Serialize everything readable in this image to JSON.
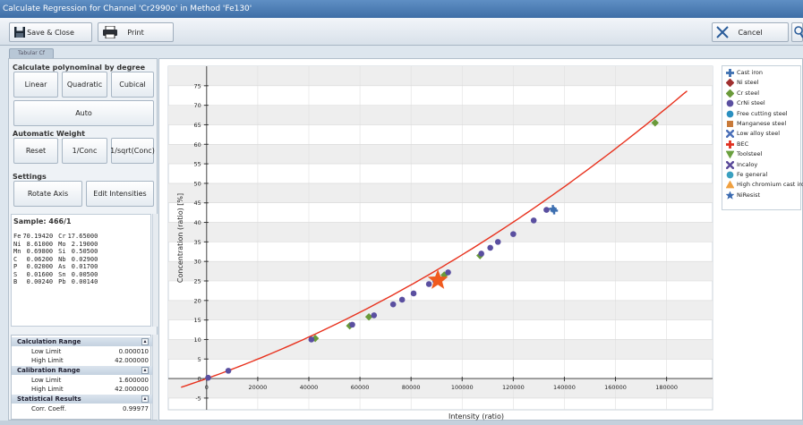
{
  "window": {
    "title": "Calculate Regression for Channel 'Cr2990o' in Method 'Fe130'"
  },
  "toolbar": {
    "save_close": "Save & Close",
    "print": "Print",
    "cancel": "Cancel"
  },
  "tab": {
    "label": "Tabular Cf"
  },
  "left": {
    "polynomial_header": "Calculate polynominal by degree",
    "linear": "Linear",
    "quadratic": "Quadratic",
    "cubical": "Cubical",
    "auto": "Auto",
    "weight_header": "Automatic Weight",
    "reset": "Reset",
    "one_conc": "1/Conc",
    "one_sqrt_conc": "1/sqrt(Conc)",
    "settings_header": "Settings",
    "rotate_axis": "Rotate Axis",
    "edit_intensities": "Edit Intensities"
  },
  "sample": {
    "title": "Sample: 466/1",
    "rows": [
      {
        "e1": "Fe",
        "v1": "70.19420",
        "e2": "Cr",
        "v2": "17.65000"
      },
      {
        "e1": "Ni",
        "v1": "8.61000",
        "e2": "Mo",
        "v2": "2.19000"
      },
      {
        "e1": "Mn",
        "v1": "0.69800",
        "e2": "Si",
        "v2": "0.50500"
      },
      {
        "e1": "C",
        "v1": "0.06200",
        "e2": "Nb",
        "v2": "0.02900"
      },
      {
        "e1": "P",
        "v1": "0.02000",
        "e2": "As",
        "v2": "0.01700"
      },
      {
        "e1": "S",
        "v1": "0.01600",
        "e2": "Sn",
        "v2": "0.00500"
      },
      {
        "e1": "B",
        "v1": "0.00240",
        "e2": "Pb",
        "v2": "0.00140"
      }
    ]
  },
  "props": {
    "calc_range": "Calculation Range",
    "low_limit": "Low Limit",
    "calc_low": "0.000010",
    "high_limit": "High Limit",
    "calc_high": "42.000000",
    "calib_range": "Calibration Range",
    "calib_low": "1.600000",
    "calib_high": "42.000000",
    "stat_results": "Statistical Results",
    "corr_coeff": "Corr. Coeff.",
    "corr_value": "0.99977"
  },
  "chart_data": {
    "type": "scatter",
    "xlabel": "Intensity (ratio)",
    "ylabel": "Concentration (ratio) [%]",
    "xlim": [
      -15000,
      198000
    ],
    "ylim": [
      -8,
      80
    ],
    "xticks": [
      0,
      20000,
      40000,
      60000,
      80000,
      100000,
      120000,
      140000,
      160000,
      180000
    ],
    "yticks": [
      -5,
      0,
      5,
      10,
      15,
      20,
      25,
      30,
      35,
      40,
      45,
      50,
      55,
      60,
      65,
      70,
      75
    ],
    "grid": true,
    "legend_position": "top-right",
    "curve": {
      "color": "#e8321e",
      "x_range": [
        -10000,
        188000
      ],
      "coef": [
        0,
        0.000232,
        8.5e-10
      ]
    },
    "series": [
      {
        "name": "Cast iron",
        "color": "#3d6fb0",
        "marker": "plus",
        "points": [
          [
            135500,
            43.5
          ],
          [
            136000,
            43.0
          ]
        ]
      },
      {
        "name": "Ni steel",
        "color": "#a03030",
        "marker": "diamond",
        "points": []
      },
      {
        "name": "Cr steel",
        "color": "#6a9a3a",
        "marker": "diamond",
        "points": [
          [
            42500,
            10.3
          ],
          [
            56000,
            13.5
          ],
          [
            63500,
            15.8
          ],
          [
            93000,
            26.5
          ],
          [
            107000,
            31.5
          ],
          [
            175500,
            65.5
          ]
        ]
      },
      {
        "name": "CrNi steel",
        "color": "#5a4fa0",
        "marker": "circle",
        "points": [
          [
            600,
            0.2
          ],
          [
            8500,
            2.0
          ],
          [
            41000,
            10.0
          ],
          [
            57000,
            13.8
          ],
          [
            65500,
            16.2
          ],
          [
            73000,
            19.0
          ],
          [
            76500,
            20.2
          ],
          [
            81000,
            21.8
          ],
          [
            87000,
            24.2
          ],
          [
            89500,
            25.0
          ],
          [
            94500,
            27.2
          ],
          [
            107500,
            32.0
          ],
          [
            111000,
            33.5
          ],
          [
            114000,
            35.0
          ],
          [
            120000,
            37.0
          ],
          [
            128000,
            40.5
          ],
          [
            133000,
            43.2
          ]
        ]
      },
      {
        "name": "Free cutting steel",
        "color": "#2a8fc0",
        "marker": "circle",
        "points": []
      },
      {
        "name": "Manganese steel",
        "color": "#c87a3a",
        "marker": "square",
        "points": []
      },
      {
        "name": "Low alloy steel",
        "color": "#4a6fb8",
        "marker": "x",
        "points": []
      },
      {
        "name": "BEC",
        "color": "#e03020",
        "marker": "plus",
        "points": []
      },
      {
        "name": "Toolsteel",
        "color": "#6aa040",
        "marker": "triangle-down",
        "points": []
      },
      {
        "name": "Incaloy",
        "color": "#5a4a9a",
        "marker": "x",
        "points": []
      },
      {
        "name": "Fe general",
        "color": "#3aa0c0",
        "marker": "circle",
        "points": []
      },
      {
        "name": "High chromium cast iron",
        "color": "#f0a040",
        "marker": "triangle",
        "points": []
      },
      {
        "name": "NiResist",
        "color": "#3a6ab0",
        "marker": "star",
        "points": []
      }
    ],
    "highlight": {
      "x": 90500,
      "y": 25.2,
      "color": "#f05a1e",
      "marker": "star"
    }
  }
}
